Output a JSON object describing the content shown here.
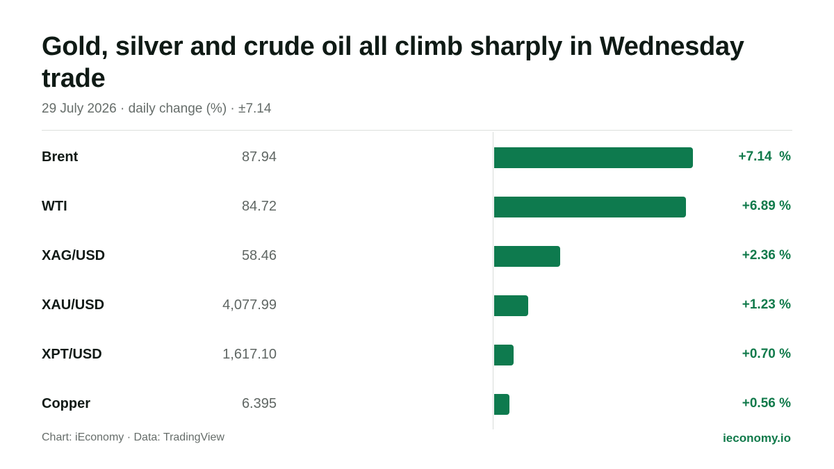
{
  "header": {
    "title": "Gold, silver and crude oil all climb sharply in Wednesday trade",
    "subtitle": "29 July 2026 · daily change (%) · ±7.14"
  },
  "footer": {
    "source": "Chart: iEconomy · Data: TradingView",
    "brand": "ieconomy.io"
  },
  "colors": {
    "bar": "#0e7a4e",
    "positive_text": "#117a4b"
  },
  "chart_data": {
    "type": "bar",
    "orientation": "horizontal",
    "title": "Gold, silver and crude oil all climb sharply in Wednesday trade",
    "subtitle": "29 July 2026 · daily change (%) · ±7.14",
    "unit": "%",
    "xlim": [
      -7.14,
      7.14
    ],
    "grid": false,
    "categories": [
      "Brent",
      "WTI",
      "XAG/USD",
      "XAU/USD",
      "XPT/USD",
      "Copper"
    ],
    "prices": [
      "87.94",
      "84.72",
      "58.46",
      "4,077.99",
      "1,617.10",
      "6.395"
    ],
    "values": [
      7.14,
      6.89,
      2.36,
      1.23,
      0.7,
      0.56
    ],
    "labels": [
      "+7.14  %",
      "+6.89 %",
      "+2.36 %",
      "+1.23 %",
      "+0.70 %",
      "+0.56 %"
    ]
  }
}
